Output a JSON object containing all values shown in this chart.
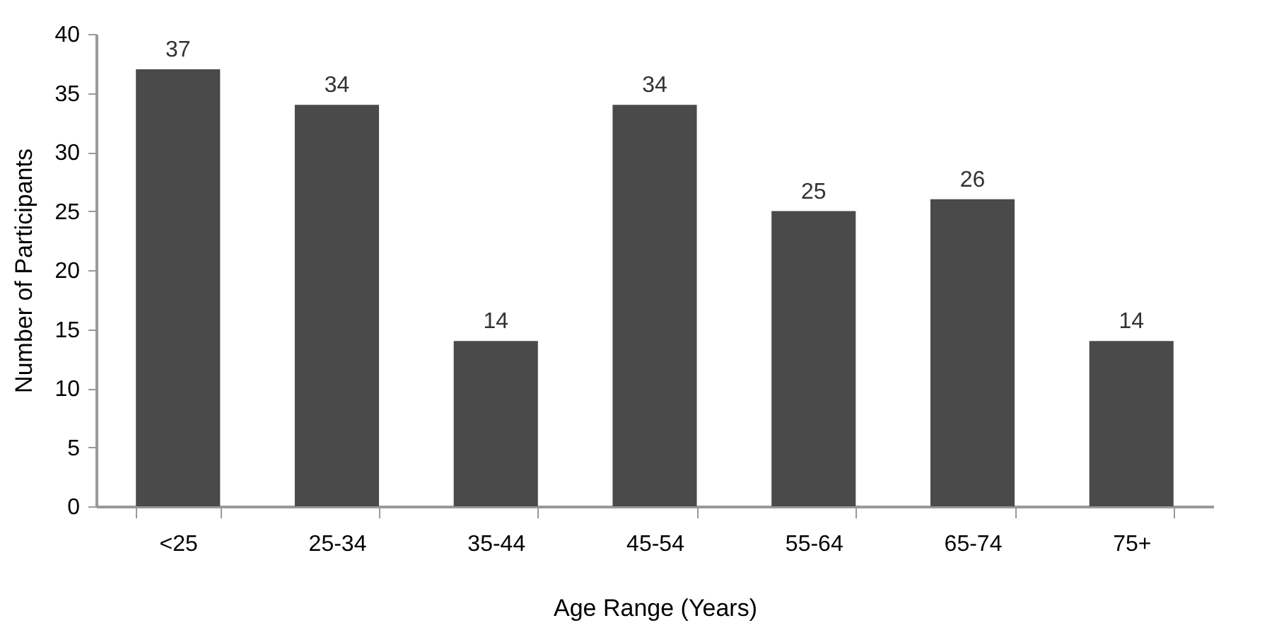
{
  "chart_data": {
    "type": "bar",
    "xlabel": "Age Range (Years)",
    "ylabel": "Number of Participants",
    "categories": [
      "<25",
      "25-34",
      "35-44",
      "45-54",
      "55-64",
      "65-74",
      "75+"
    ],
    "values": [
      37,
      34,
      14,
      34,
      25,
      26,
      14
    ],
    "color": "#4a4a4a",
    "ylim": [
      0,
      40
    ],
    "yticks": [
      0,
      5,
      10,
      15,
      20,
      25,
      30,
      35,
      40
    ],
    "grid": false,
    "data_labels": true
  }
}
